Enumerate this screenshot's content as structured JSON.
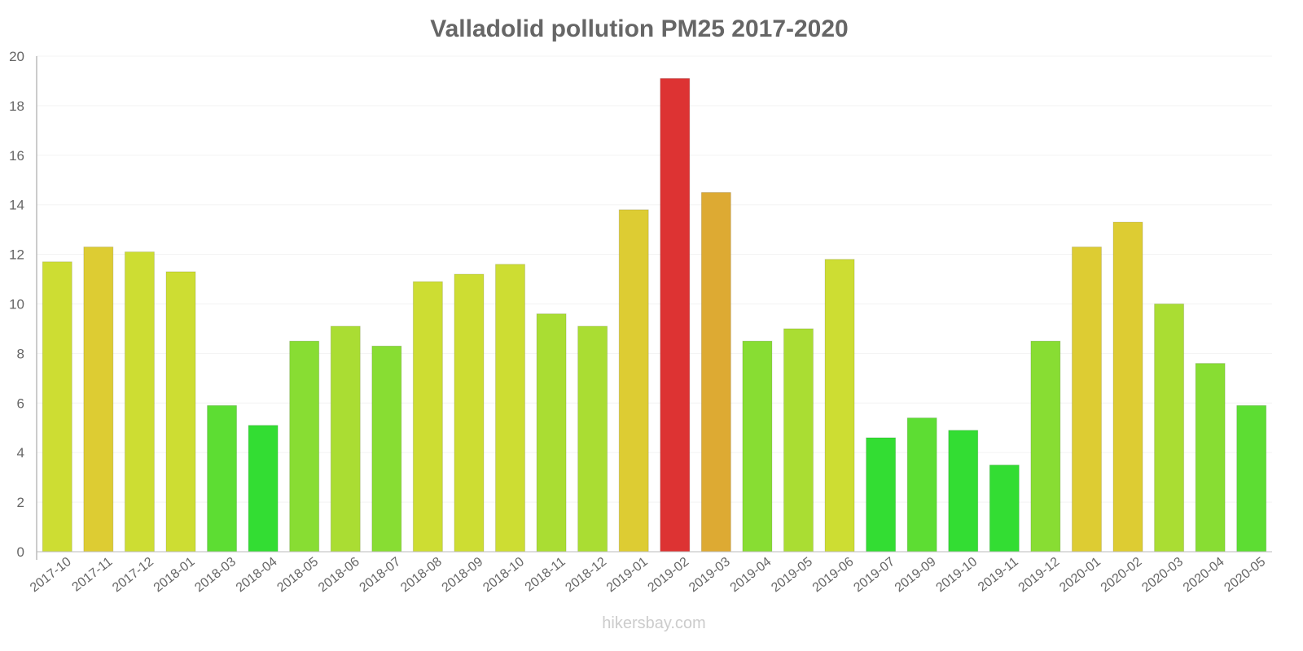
{
  "chart_data": {
    "type": "bar",
    "title": "Valladolid pollution PM25 2017-2020",
    "xlabel": "",
    "ylabel": "",
    "ylim": [
      0,
      20
    ],
    "yticks": [
      0,
      2,
      4,
      6,
      8,
      10,
      12,
      14,
      16,
      18,
      20
    ],
    "grid": true,
    "categories": [
      "2017-10",
      "2017-11",
      "2017-12",
      "2018-01",
      "2018-03",
      "2018-04",
      "2018-05",
      "2018-06",
      "2018-07",
      "2018-08",
      "2018-09",
      "2018-10",
      "2018-11",
      "2018-12",
      "2019-01",
      "2019-02",
      "2019-03",
      "2019-04",
      "2019-05",
      "2019-06",
      "2019-07",
      "2019-09",
      "2019-10",
      "2019-11",
      "2019-12",
      "2020-01",
      "2020-02",
      "2020-03",
      "2020-04",
      "2020-05"
    ],
    "values": [
      11.7,
      12.3,
      12.1,
      11.3,
      5.9,
      5.1,
      8.5,
      9.1,
      8.3,
      10.9,
      11.2,
      11.6,
      9.6,
      9.1,
      13.8,
      19.1,
      14.5,
      8.5,
      9.0,
      11.8,
      4.6,
      5.4,
      4.9,
      3.5,
      8.5,
      12.3,
      13.3,
      10.0,
      7.6,
      5.9
    ],
    "colors": [
      "#cddd33",
      "#ddcc33",
      "#cddd33",
      "#cddd33",
      "#5ddd33",
      "#33dd33",
      "#88dd33",
      "#aadd33",
      "#88dd33",
      "#cddd33",
      "#cddd33",
      "#cddd33",
      "#aadd33",
      "#aadd33",
      "#ddcc33",
      "#dd3333",
      "#ddaa33",
      "#88dd33",
      "#aadd33",
      "#cddd33",
      "#33dd33",
      "#5ddd33",
      "#33dd33",
      "#33dd33",
      "#88dd33",
      "#ddcc33",
      "#ddcc33",
      "#aadd33",
      "#88dd33",
      "#5ddd33"
    ]
  },
  "watermark": "hikersbay.com"
}
